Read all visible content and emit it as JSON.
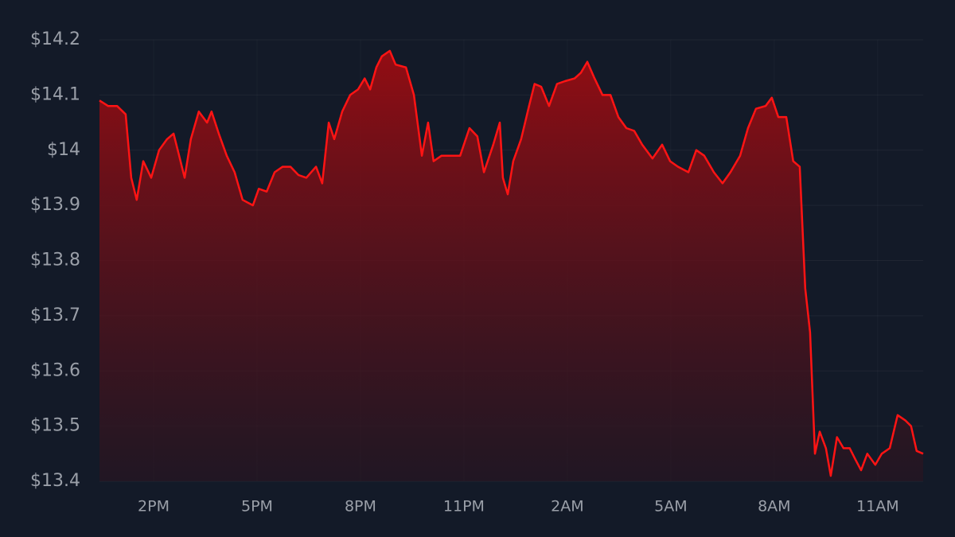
{
  "chart_data": {
    "type": "area",
    "x": [
      12.43,
      12.68,
      12.94,
      13.19,
      13.35,
      13.51,
      13.7,
      13.93,
      14.16,
      14.39,
      14.58,
      14.74,
      14.9,
      15.08,
      15.31,
      15.55,
      15.68,
      15.89,
      16.12,
      16.35,
      16.58,
      16.88,
      17.05,
      17.28,
      17.51,
      17.74,
      17.97,
      18.2,
      18.43,
      18.71,
      18.89,
      19.08,
      19.24,
      19.47,
      19.7,
      19.93,
      20.12,
      20.28,
      20.46,
      20.62,
      20.85,
      21.02,
      21.32,
      21.55,
      21.78,
      21.96,
      22.12,
      22.35,
      22.59,
      22.89,
      23.16,
      23.39,
      23.58,
      23.85,
      24.04,
      24.13,
      24.27,
      24.43,
      24.66,
      24.89,
      25.05,
      25.24,
      25.47,
      25.7,
      25.93,
      26.21,
      26.39,
      26.58,
      26.79,
      27.02,
      27.25,
      27.48,
      27.71,
      27.94,
      28.17,
      28.47,
      28.75,
      28.98,
      29.21,
      29.51,
      29.74,
      29.97,
      30.25,
      30.5,
      30.73,
      31.01,
      31.24,
      31.47,
      31.75,
      31.93,
      32.12,
      32.35,
      32.55,
      32.74,
      32.9,
      33.04,
      33.18,
      33.32,
      33.5,
      33.64,
      33.82,
      34.01,
      34.19,
      34.35,
      34.52,
      34.7,
      34.93,
      35.12,
      35.35,
      35.58,
      35.81,
      35.97,
      36.13,
      36.32
    ],
    "series": [
      {
        "color": "#ff1414",
        "values": [
          14.09,
          14.08,
          14.08,
          14.065,
          13.95,
          13.91,
          13.98,
          13.95,
          14.0,
          14.02,
          14.03,
          13.99,
          13.95,
          14.02,
          14.07,
          14.05,
          14.07,
          14.03,
          13.99,
          13.96,
          13.91,
          13.9,
          13.93,
          13.925,
          13.96,
          13.97,
          13.97,
          13.955,
          13.95,
          13.97,
          13.94,
          14.05,
          14.02,
          14.07,
          14.1,
          14.11,
          14.13,
          14.11,
          14.15,
          14.17,
          14.18,
          14.155,
          14.15,
          14.1,
          13.99,
          14.05,
          13.98,
          13.99,
          13.99,
          13.99,
          14.04,
          14.025,
          13.96,
          14.01,
          14.05,
          13.95,
          13.92,
          13.98,
          14.02,
          14.08,
          14.12,
          14.115,
          14.08,
          14.12,
          14.125,
          14.13,
          14.14,
          14.16,
          14.13,
          14.1,
          14.1,
          14.06,
          14.04,
          14.035,
          14.01,
          13.985,
          14.01,
          13.98,
          13.97,
          13.96,
          14.0,
          13.99,
          13.96,
          13.94,
          13.96,
          13.99,
          14.04,
          14.075,
          14.08,
          14.095,
          14.06,
          14.06,
          13.98,
          13.97,
          13.75,
          13.67,
          13.45,
          13.49,
          13.46,
          13.41,
          13.48,
          13.46,
          13.46,
          13.44,
          13.42,
          13.45,
          13.43,
          13.45,
          13.46,
          13.52,
          13.51,
          13.5,
          13.455,
          13.45
        ]
      }
    ],
    "xlim": [
      12.43,
      36.32
    ],
    "xticks": [
      {
        "value": 14,
        "label": "2PM"
      },
      {
        "value": 17,
        "label": "5PM"
      },
      {
        "value": 20,
        "label": "8PM"
      },
      {
        "value": 23,
        "label": "11PM"
      },
      {
        "value": 26,
        "label": "2AM"
      },
      {
        "value": 29,
        "label": "5AM"
      },
      {
        "value": 32,
        "label": "8AM"
      },
      {
        "value": 35,
        "label": "11AM"
      }
    ],
    "ylim": [
      13.4,
      14.2
    ],
    "yticks": [
      {
        "value": 13.4,
        "label": "$13.4"
      },
      {
        "value": 13.5,
        "label": "$13.5"
      },
      {
        "value": 13.6,
        "label": "$13.6"
      },
      {
        "value": 13.7,
        "label": "$13.7"
      },
      {
        "value": 13.8,
        "label": "$13.8"
      },
      {
        "value": 13.9,
        "label": "$13.9"
      },
      {
        "value": 14,
        "label": "$14"
      },
      {
        "value": 14.1,
        "label": "$14.1"
      },
      {
        "value": 14.2,
        "label": "$14.2"
      }
    ],
    "grid": true
  }
}
